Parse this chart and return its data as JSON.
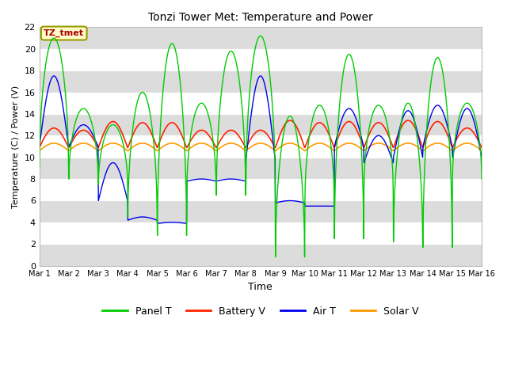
{
  "title": "Tonzi Tower Met: Temperature and Power",
  "xlabel": "Time",
  "ylabel": "Temperature (C) / Power (V)",
  "ylim": [
    0,
    22
  ],
  "yticks": [
    0,
    2,
    4,
    6,
    8,
    10,
    12,
    14,
    16,
    18,
    20,
    22
  ],
  "xtick_labels": [
    "Mar 1",
    "Mar 2",
    "Mar 3",
    "Mar 4",
    "Mar 5",
    "Mar 6",
    "Mar 7",
    "Mar 8",
    "Mar 9",
    "Mar 10",
    "Mar 11",
    "Mar 12",
    "Mar 13",
    "Mar 14",
    "Mar 15",
    "Mar 16"
  ],
  "colors": {
    "panel_t": "#00CC00",
    "battery_v": "#FF2200",
    "air_t": "#0000EE",
    "solar_v": "#FF9900"
  },
  "plot_bg_color": "#FFFFFF",
  "band_color": "#DCDCDC",
  "annotation_text": "TZ_tmet",
  "annotation_facecolor": "#FFFFCC",
  "annotation_edgecolor": "#999900",
  "annotation_textcolor": "#AA0000",
  "legend_labels": [
    "Panel T",
    "Battery V",
    "Air T",
    "Solar V"
  ],
  "n_days": 15,
  "pts_per_day": 96,
  "panel_peaks": [
    21.0,
    14.5,
    13.0,
    16.0,
    20.5,
    15.0,
    19.8,
    21.2,
    13.8,
    14.8,
    19.5,
    14.8,
    15.0,
    19.2,
    15.0
  ],
  "panel_valleys": [
    9.0,
    8.0,
    7.5,
    4.5,
    2.8,
    7.0,
    6.5,
    7.3,
    0.8,
    6.0,
    2.5,
    7.0,
    2.2,
    1.7,
    8.0
  ],
  "air_peaks": [
    17.5,
    13.0,
    9.5,
    4.5,
    4.0,
    8.0,
    8.0,
    17.5,
    6.0,
    5.5,
    14.5,
    12.0,
    14.3,
    14.8,
    14.5
  ],
  "air_valleys": [
    11.0,
    11.0,
    6.0,
    4.2,
    3.9,
    7.8,
    7.8,
    9.8,
    5.8,
    5.5,
    11.0,
    9.5,
    10.0,
    11.0,
    10.0
  ],
  "battery_base": 11.2,
  "battery_spikes": [
    1.5,
    1.3,
    2.1,
    2.0,
    2.0,
    1.3,
    1.3,
    1.3,
    2.2,
    2.0,
    2.1,
    2.0,
    2.2,
    2.1,
    1.5
  ],
  "solar_base": 10.8,
  "solar_spike": 0.5
}
